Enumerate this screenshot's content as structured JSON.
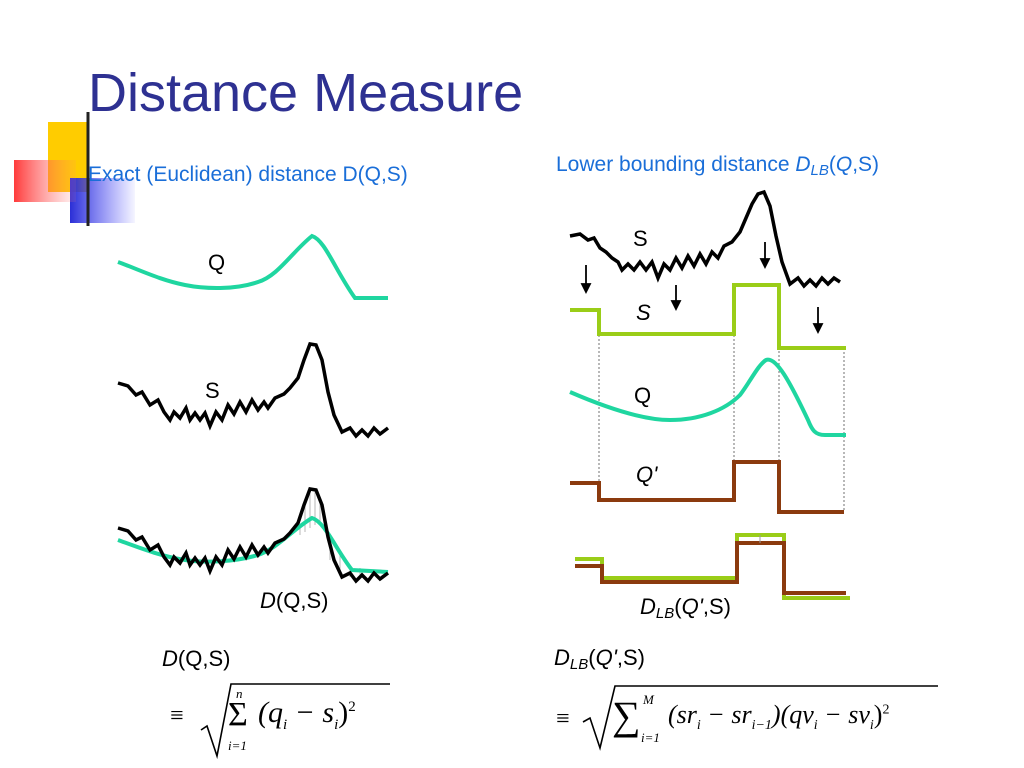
{
  "slide": {
    "title": "Distance Measure",
    "subtitle_left": "Exact (Euclidean) distance D(Q,S)",
    "subtitle_right_prefix": "Lower bounding distance ",
    "subtitle_right_D": "D",
    "subtitle_right_LB": "LB",
    "subtitle_right_Q": "Q",
    "subtitle_right_suffix": ",S)",
    "paren_open": "("
  },
  "left_panel": {
    "label_q": "Q",
    "label_s": "S",
    "label_d_italic": "D",
    "label_d_rest": "(Q,S)",
    "formula_label_italic": "D",
    "formula_label_rest": "(Q,S)",
    "formula_equiv": "≡",
    "formula_sum_top": "n",
    "formula_sum_bottom": "i=1",
    "formula_body": "(q",
    "formula_sub_i": "i",
    "formula_minus": " − s",
    "formula_sub_i2": "i",
    "formula_close": ")",
    "formula_exp": "2"
  },
  "right_panel": {
    "label_s": "S",
    "label_s_italic": "S",
    "label_q": "Q",
    "label_q_prime": "Q'",
    "label_dlb_D": "D",
    "label_dlb_LB": "LB",
    "label_dlb_rest_open": "(",
    "label_dlb_Q": "Q'",
    "label_dlb_rest": ",S)",
    "formula_label_D": "D",
    "formula_label_LB": "LB",
    "formula_label_open": "(",
    "formula_label_Q": "Q'",
    "formula_label_rest": ",S)",
    "formula_equiv": "≡",
    "formula_sum_top": "M",
    "formula_sum_bottom": "i=1",
    "formula_body": "(sr",
    "formula_s1": "i",
    "formula_b2": " − sr",
    "formula_s2": "i−1",
    "formula_b3": ")(qv",
    "formula_s3": "i",
    "formula_b4": " − sv",
    "formula_s4": "i",
    "formula_b5": ")",
    "formula_exp": "2"
  },
  "colors": {
    "title": "#2e3192",
    "subtitle": "#1a6ed8",
    "query_curve": "#1fd6a0",
    "series_curve": "#000000",
    "s_approx": "#9acd18",
    "q_approx": "#8b3a0e",
    "deco_yellow": "#ffcc00",
    "deco_red": "#ff4040",
    "deco_blue": "#2b2fd6"
  }
}
